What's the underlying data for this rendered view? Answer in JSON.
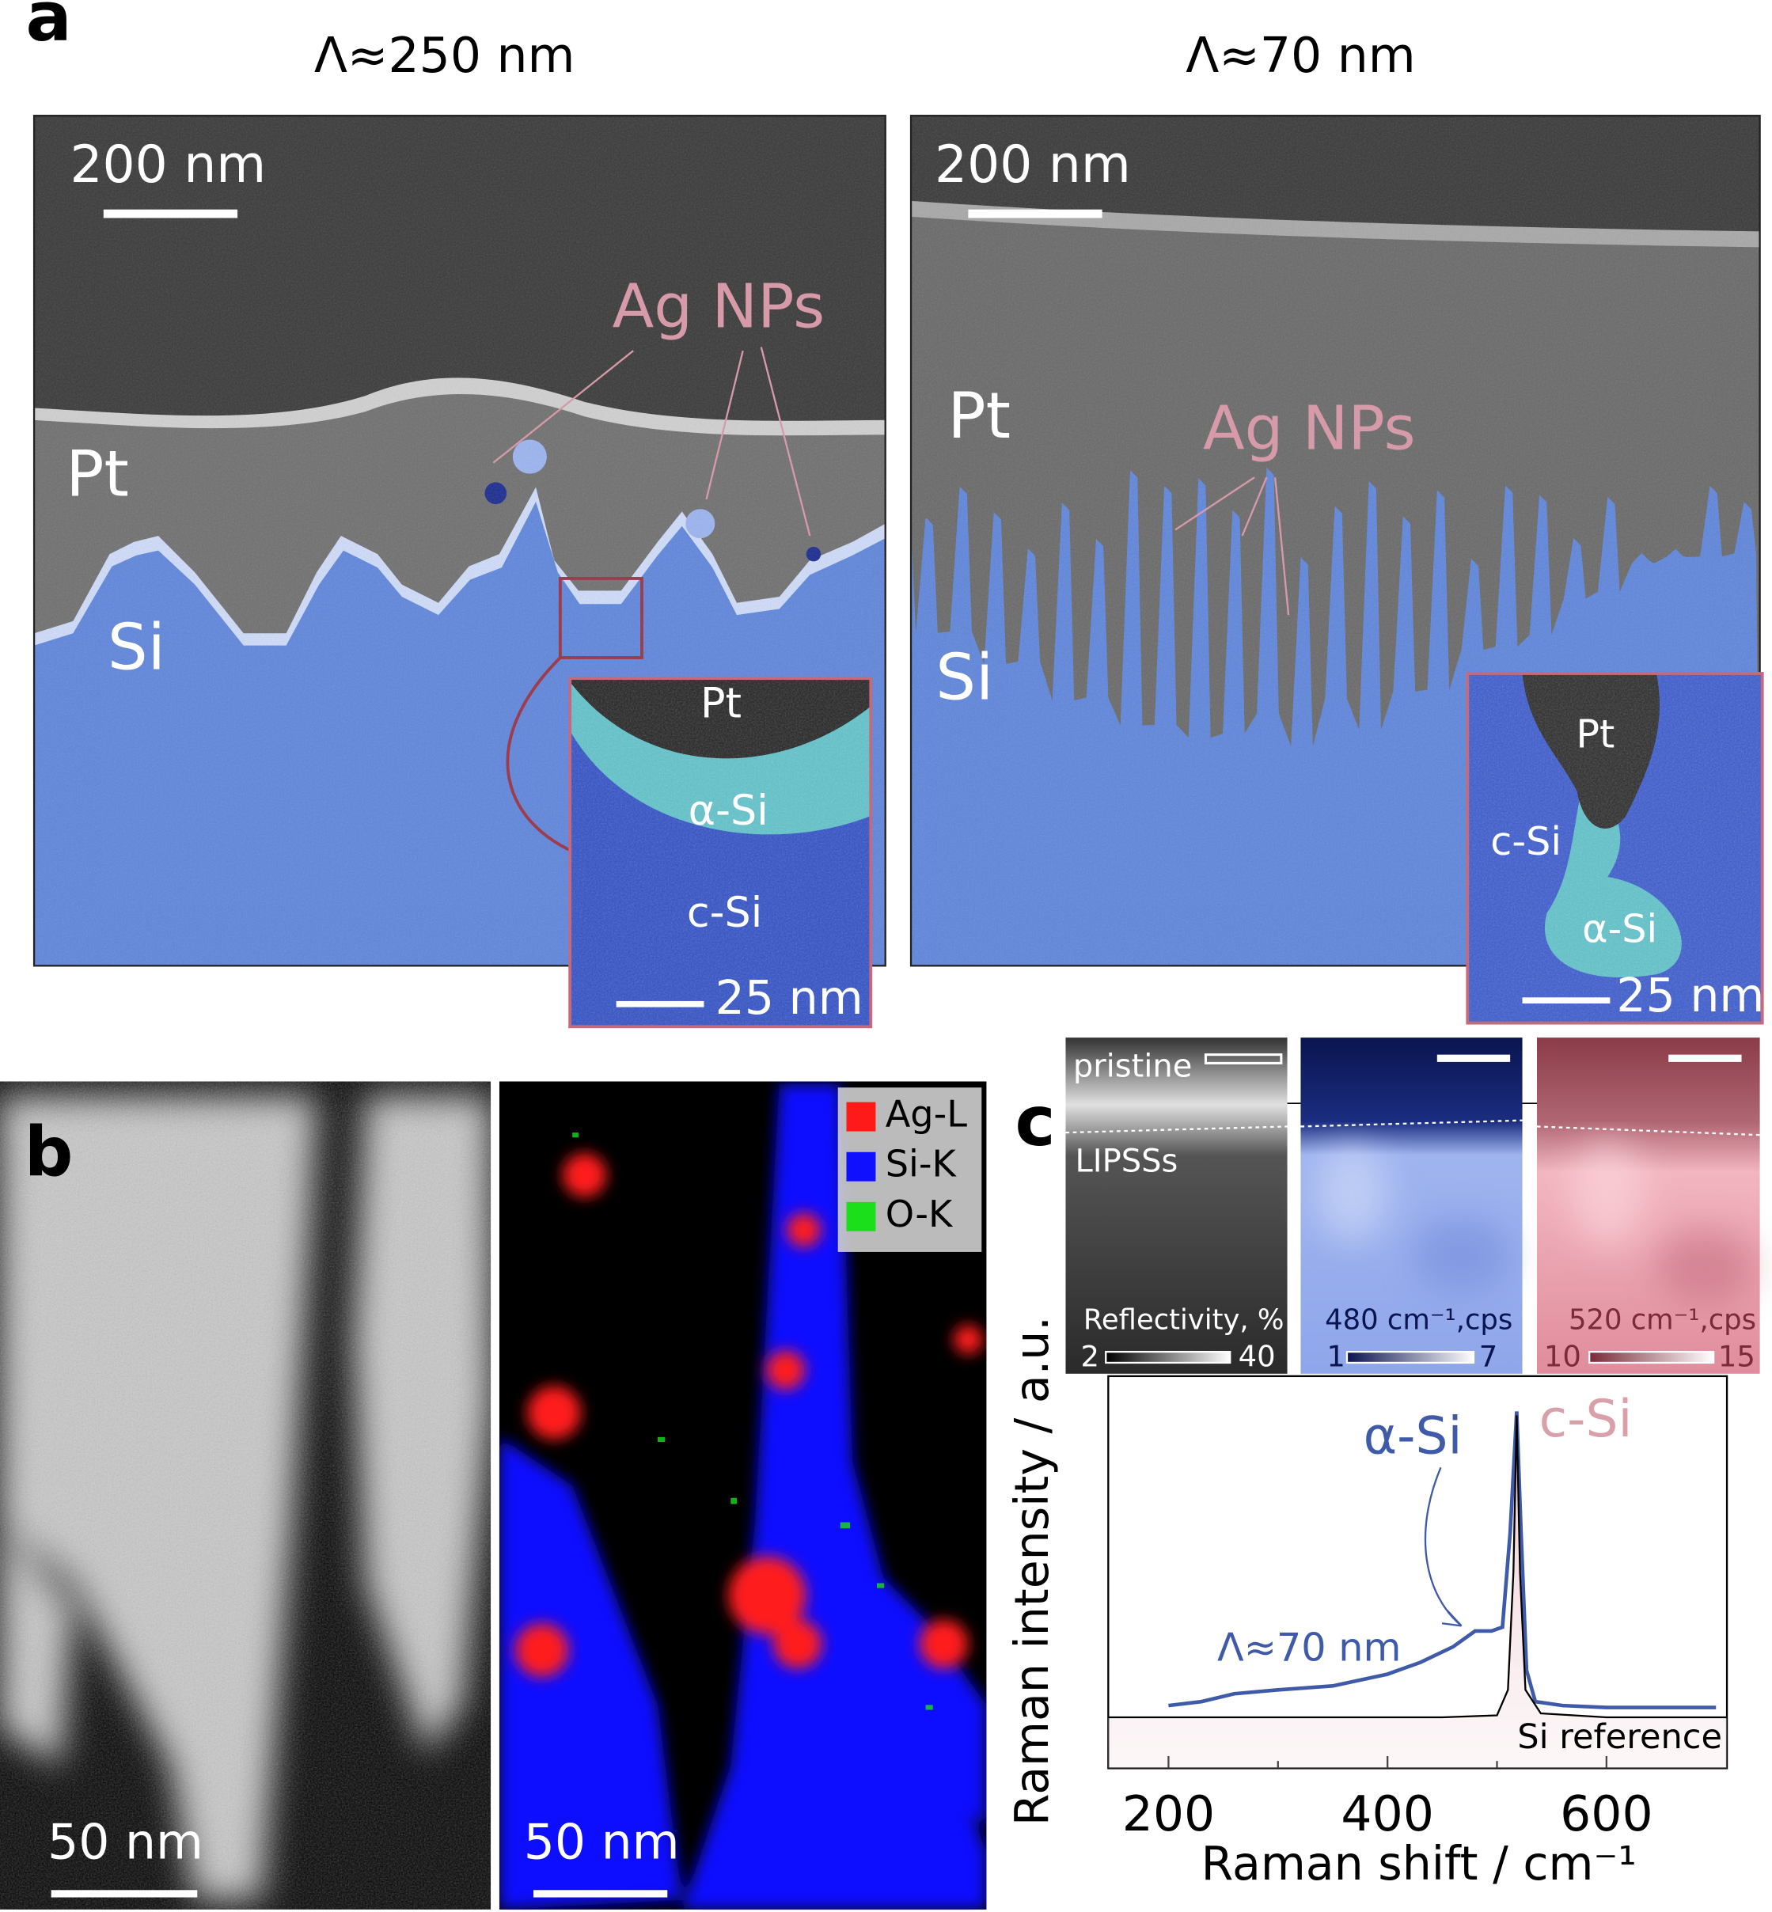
{
  "panel_a": {
    "label": "a",
    "left": {
      "title": "Λ≈250 nm",
      "scale_bar": "200 nm",
      "annotation": "Ag NPs",
      "layers": [
        "Pt",
        "Si"
      ],
      "inset": {
        "labels": [
          "Pt",
          "α-Si",
          "c-Si"
        ],
        "scale_bar": "25 nm"
      }
    },
    "right": {
      "title": "Λ≈70 nm",
      "scale_bar": "200 nm",
      "annotation": "Ag NPs",
      "layers": [
        "Pt",
        "Si"
      ],
      "inset": {
        "labels": [
          "Pt",
          "c-Si",
          "α-Si"
        ],
        "scale_bar": "25 nm"
      }
    }
  },
  "panel_b": {
    "label": "b",
    "left_scale_bar": "50 nm",
    "right_scale_bar": "50 nm",
    "legend": [
      {
        "name": "Ag-L",
        "color": "#ff1a1a"
      },
      {
        "name": "Si-K",
        "color": "#1010ff"
      },
      {
        "name": "O-K",
        "color": "#1adf1a"
      }
    ]
  },
  "panel_c": {
    "label": "c",
    "maps": [
      {
        "top_label": "pristine",
        "bottom_label": "LIPSSs",
        "colorbar_label": "Reflectivity, %",
        "range": [
          2,
          40
        ]
      },
      {
        "colorbar_label": "480 cm⁻¹,cps",
        "range": [
          1,
          7
        ]
      },
      {
        "colorbar_label": "520 cm⁻¹,cps",
        "range": [
          10,
          15
        ]
      }
    ]
  },
  "chart_data": {
    "type": "line",
    "xlabel": "Raman shift / cm⁻¹",
    "ylabel": "Raman intensity / a.u.",
    "xlim": [
      145,
      710
    ],
    "xticks": [
      200,
      400,
      600
    ],
    "minor_xticks": [
      300,
      500
    ],
    "ylim": [
      0,
      1
    ],
    "annotations": [
      {
        "text": "α-Si",
        "color": "#3f5aa8"
      },
      {
        "text": "c-Si",
        "color": "#d9a0aa"
      }
    ],
    "series": [
      {
        "name": "Λ≈70 nm",
        "color": "#3f5aa8",
        "x": [
          200,
          230,
          260,
          300,
          350,
          400,
          430,
          460,
          480,
          495,
          505,
          512,
          518,
          522,
          527,
          535,
          560,
          600,
          650,
          700
        ],
        "values": [
          0.16,
          0.17,
          0.19,
          0.2,
          0.21,
          0.24,
          0.27,
          0.31,
          0.35,
          0.35,
          0.36,
          0.6,
          0.91,
          0.6,
          0.25,
          0.17,
          0.16,
          0.155,
          0.155,
          0.155
        ]
      },
      {
        "name": "Si reference",
        "color": "#000000",
        "x": [
          145,
          300,
          450,
          500,
          510,
          515,
          518,
          521,
          526,
          540,
          600,
          710
        ],
        "values": [
          0.13,
          0.13,
          0.13,
          0.135,
          0.2,
          0.5,
          0.9,
          0.5,
          0.2,
          0.14,
          0.13,
          0.13
        ]
      }
    ]
  }
}
